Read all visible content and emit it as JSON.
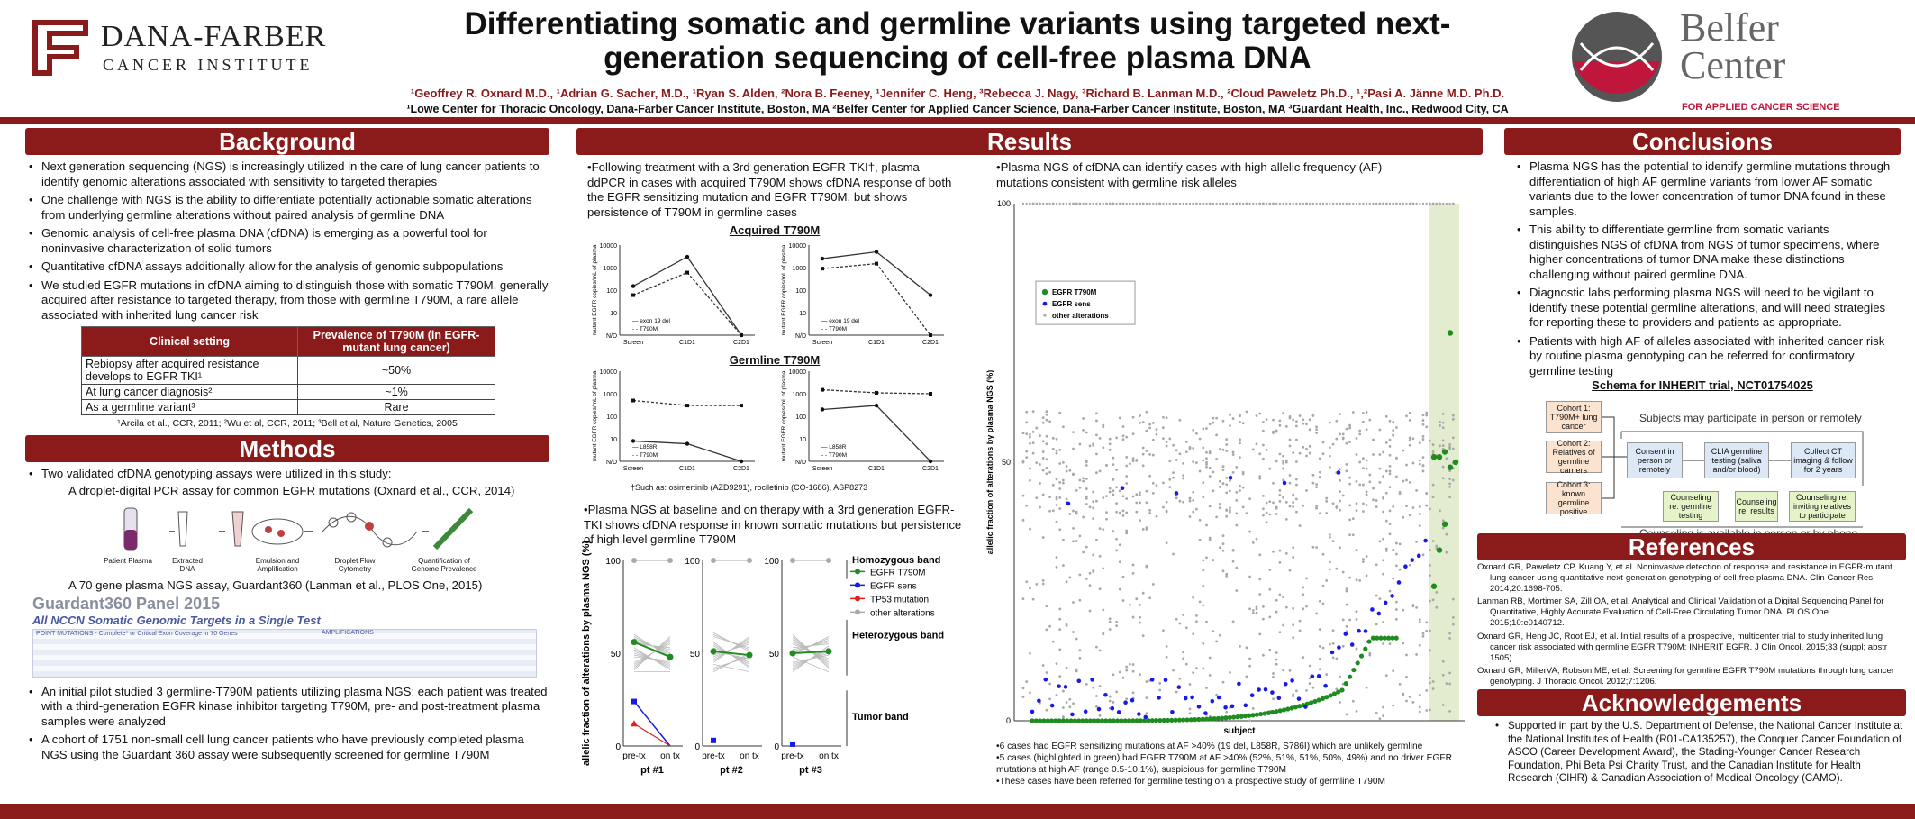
{
  "header": {
    "title_line1": "Differentiating somatic and germline variants using targeted next-",
    "title_line2": "generation sequencing of cell-free plasma DNA",
    "authors": "¹Geoffrey R. Oxnard M.D., ¹Adrian G. Sacher, M.D., ¹Ryan S. Alden, ²Nora B. Feeney, ¹Jennifer C. Heng, ³Rebecca J. Nagy, ³Richard B. Lanman M.D., ²Cloud Paweletz Ph.D., ¹,²Pasi A. Jänne M.D. Ph.D.",
    "affiliations": "¹Lowe Center for Thoracic Oncology, Dana-Farber Cancer Institute, Boston, MA ²Belfer Center for Applied Cancer Science, Dana-Farber Cancer Institute, Boston, MA ³Guardant Health, Inc., Redwood City, CA",
    "logo_left_line1": "DANA-FARBER",
    "logo_left_line2": "CANCER INSTITUTE",
    "logo_right_line1": "Belfer",
    "logo_right_line2": "Center",
    "logo_right_line3": "FOR APPLIED CANCER SCIENCE"
  },
  "background": {
    "title": "Background",
    "bullets": [
      "Next generation sequencing (NGS) is increasingly utilized in the care of lung cancer patients to identify genomic alterations associated with sensitivity to targeted therapies",
      "One challenge with NGS is the ability to differentiate potentially actionable somatic alterations from underlying germline alterations without paired analysis of germline DNA",
      "Genomic analysis of cell-free plasma DNA (cfDNA) is emerging as a powerful tool for noninvasive characterization of solid tumors",
      "Quantitative cfDNA assays additionally allow for the analysis of genomic subpopulations",
      "We studied EGFR mutations in cfDNA aiming to distinguish those with somatic T790M, generally acquired after resistance to targeted therapy, from those with germline T790M, a rare allele associated with inherited lung cancer risk"
    ],
    "table_header_1": "Clinical setting",
    "table_header_2": "Prevalence of T790M (in EGFR-mutant lung cancer)",
    "table_rows": [
      {
        "setting": "Rebiopsy after acquired resistance develops to EGFR TKI¹",
        "value": "~50%"
      },
      {
        "setting": "At lung cancer diagnosis²",
        "value": "~1%"
      },
      {
        "setting": "As a germline variant³",
        "value": "Rare"
      }
    ],
    "table_refs": "¹Arcila et al., CCR, 2011; ²Wu et al, CCR, 2011; ³Bell et al, Nature Genetics, 2005"
  },
  "methods": {
    "title": "Methods",
    "bullet1": "Two validated cfDNA genotyping assays were utilized in this study:",
    "sub1": "A droplet-digital PCR assay for common EGFR mutations (Oxnard et al., CCR, 2014)",
    "steps": [
      "Patient Plasma",
      "Extracted DNA",
      "Emulsion and Amplification",
      "Droplet Flow Cytometry",
      "Quantification of Genome Prevalence"
    ],
    "sub2": "A 70 gene plasma NGS assay, Guardant360 (Lanman et al., PLOS One, 2015)",
    "panel_title": "Guardant360 Panel 2015",
    "panel_subtitle": "All NCCN Somatic Genomic Targets in a Single Test",
    "panel_col1": "POINT MUTATIONS - Complete* or Critical Exon Coverage in 70 Genes",
    "panel_col2": "AMPLIFICATIONS",
    "bullet2": "An initial pilot studied 3 germline-T790M patients utilizing plasma NGS; each patient was treated with a third-generation EGFR kinase inhibitor targeting T790M, pre- and post-treatment plasma samples were analyzed",
    "bullet3": "A cohort of 1751 non-small cell lung cancer patients who have previously completed plasma NGS using the Guardant 360 assay were subsequently screened for germline T790M"
  },
  "results": {
    "title": "Results",
    "text1": "•Following treatment with a 3rd generation EGFR-TKI†, plasma ddPCR in cases with acquired T790M shows cfDNA response of both the EGFR sensitizing mutation and EGFR T790M, but shows persistence of T790M in germline cases",
    "acquired_title": "Acquired T790M",
    "germline_title": "Germline T790M",
    "ddpcr_ylabel": "mutant EGFR copies/mL of plasma",
    "ddpcr_xlabels": [
      "Screen",
      "C1D1",
      "C2D1"
    ],
    "ddpcr_legend_a": [
      "exon 19 del",
      "T790M"
    ],
    "ddpcr_legend_g": [
      "L858R",
      "T790M"
    ],
    "footnote": "†Such as: osimertinib (AZD9291), rociletinib (CO-1686), ASP8273",
    "text2": "•Plasma NGS at baseline and on therapy with a 3rd generation EGFR-TKI shows cfDNA response in known somatic mutations but persistence of high level germline T790M",
    "af_ylabel": "allelic fraction of alterations by plasma NGS (%)",
    "af_yticks": [
      "100",
      "50",
      "0"
    ],
    "af_xticks": [
      "pre-tx",
      "on tx"
    ],
    "af_patients": [
      "pt #1",
      "pt #2",
      "pt #3"
    ],
    "bands": [
      "Homozygous band",
      "Heterozygous band",
      "Tumor band"
    ],
    "af_legend": [
      "EGFR T790M",
      "EGFR sens",
      "TP53 mutation",
      "other alterations"
    ],
    "text3": "•Plasma NGS of cfDNA can identify cases with high allelic frequency (AF) mutations consistent with germline risk alleles",
    "scatter_ylabel": "allelic fraction of alterations by plasma NGS (%)",
    "scatter_xlabel": "subject",
    "scatter_yticks": [
      "100",
      "50",
      "0"
    ],
    "scatter_legend": [
      "EGFR T790M",
      "EGFR sens",
      "other alterations"
    ],
    "notes": [
      "•6 cases had EGFR sensitizing mutations at AF >40% (19 del, L858R, S786I) which are unlikely germline",
      "•5 cases (highlighted in green) had EGFR T790M at AF >40% (52%, 51%, 51%, 50%, 49%) and no driver EGFR mutations at high AF (range 0.5-10.1%), suspicious for germline T790M",
      "•These cases have been referred for germline testing on a prospective study of germline T790M"
    ]
  },
  "conclusions": {
    "title": "Conclusions",
    "bullets": [
      "Plasma NGS has the potential to identify germline mutations through differentiation of high AF germline variants from lower AF somatic variants due to the lower concentration of tumor DNA found in these samples.",
      "This ability to differentiate germline from somatic variants distinguishes NGS of cfDNA from NGS of tumor specimens, where higher concentrations of tumor DNA make these distinctions challenging without paired germline DNA.",
      "Diagnostic labs performing plasma NGS will need to be vigilant to identify these potential germline alterations, and will need strategies for reporting these to providers and patients as appropriate.",
      "Patients with high AF of alleles associated with inherited cancer risk by routine plasma genotyping can be referred for confirmatory germline testing"
    ],
    "schema_title": "Schema for INHERIT trial, NCT01754025",
    "cohorts": [
      "Cohort 1: T790M+ lung cancer",
      "Cohort 2: Relatives of germline carriers",
      "Cohort 3: known germline positive"
    ],
    "schema_header": "Subjects may participate in person or remotely",
    "schema_boxes": [
      "Consent in person or remotely",
      "CLIA germline testing (saliva and/or blood)",
      "Collect CT imaging & follow for 2 years"
    ],
    "counseling_boxes": [
      "Counseling re: germline testing",
      "Counseling re: results",
      "Counseling re: inviting relatives to participate"
    ],
    "schema_footer": "Counseling is available in person or by phone"
  },
  "references": {
    "title": "References",
    "items": [
      "Oxnard GR, Paweletz CP, Kuang Y, et al. Noninvasive detection of response and resistance in EGFR-mutant lung cancer using quantitative next-generation genotyping of cell-free plasma DNA. Clin Cancer Res. 2014;20:1698-705.",
      "Lanman RB, Mortimer SA, Zill OA, et al. Analytical and Clinical Validation of a Digital Sequencing Panel for Quantitative, Highly Accurate Evaluation of Cell-Free Circulating Tumor DNA. PLOS One. 2015;10:e0140712.",
      "Oxnard GR, Heng JC, Root EJ, et al. Initial results of a prospective, multicenter trial to study inherited lung cancer risk associated with germline EGFR T790M: INHERIT EGFR. J Clin Oncol. 2015;33 (suppl; abstr 1505).",
      "Oxnard GR, MillerVA, Robson ME, et al. Screening for germline EGFR T790M mutations through lung cancer genotyping. J Thoracic Oncol. 2012;7:1206."
    ]
  },
  "acknowledgements": {
    "title": "Acknowledgements",
    "text": "Supported in part by the U.S. Department of Defense, the National Cancer Institute at the National Institutes of Health (R01-CA135257), the Conquer Cancer Foundation of ASCO (Career Development Award), the Stading-Younger Cancer Research Foundation, Phi Beta Psi Charity Trust, and the Canadian Institute for Health Research (CIHR) & Canadian Association of Medical Oncology (CAMO)."
  },
  "colors": {
    "accent": "#8b1a1a",
    "green": "#1e8c1e",
    "blue": "#1a1ae6",
    "red": "#e02020",
    "grey": "#a0a0a0"
  }
}
